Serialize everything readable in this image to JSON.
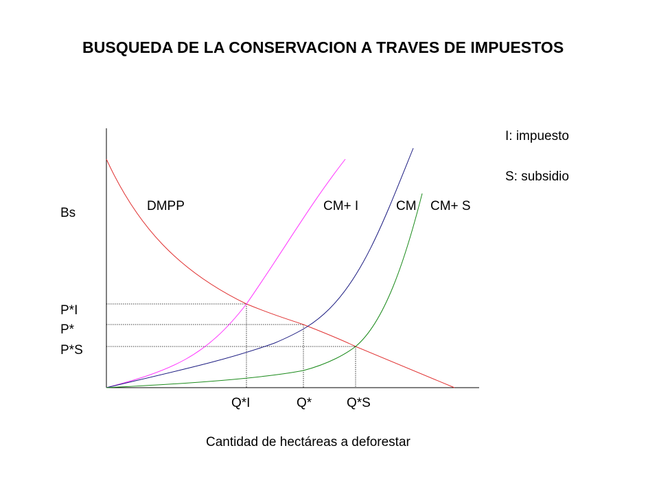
{
  "title": "BUSQUEDA DE LA CONSERVACION A TRAVES DE IMPUESTOS",
  "legend": {
    "tax": "I: impuesto",
    "subsidy": "S: subsidio"
  },
  "axes": {
    "ylabel": "Bs",
    "xlabel": "Cantidad de hectáreas a deforestar"
  },
  "curves": {
    "demand": {
      "label": "DMPP",
      "color": "#e03030"
    },
    "cost_tax": {
      "label": "CM+ I",
      "color": "#ff33ff"
    },
    "cost": {
      "label": "CM",
      "color": "#1a1a80"
    },
    "cost_subsidy": {
      "label": "CM+ S",
      "color": "#1a8a1a"
    }
  },
  "price_labels": {
    "tax": "P*I",
    "base": "P*",
    "subsidy": "P*S"
  },
  "quantity_labels": {
    "tax": "Q*I",
    "base": "Q*",
    "subsidy": "Q*S"
  },
  "colors": {
    "axis": "#000000",
    "guide": "#000000"
  }
}
